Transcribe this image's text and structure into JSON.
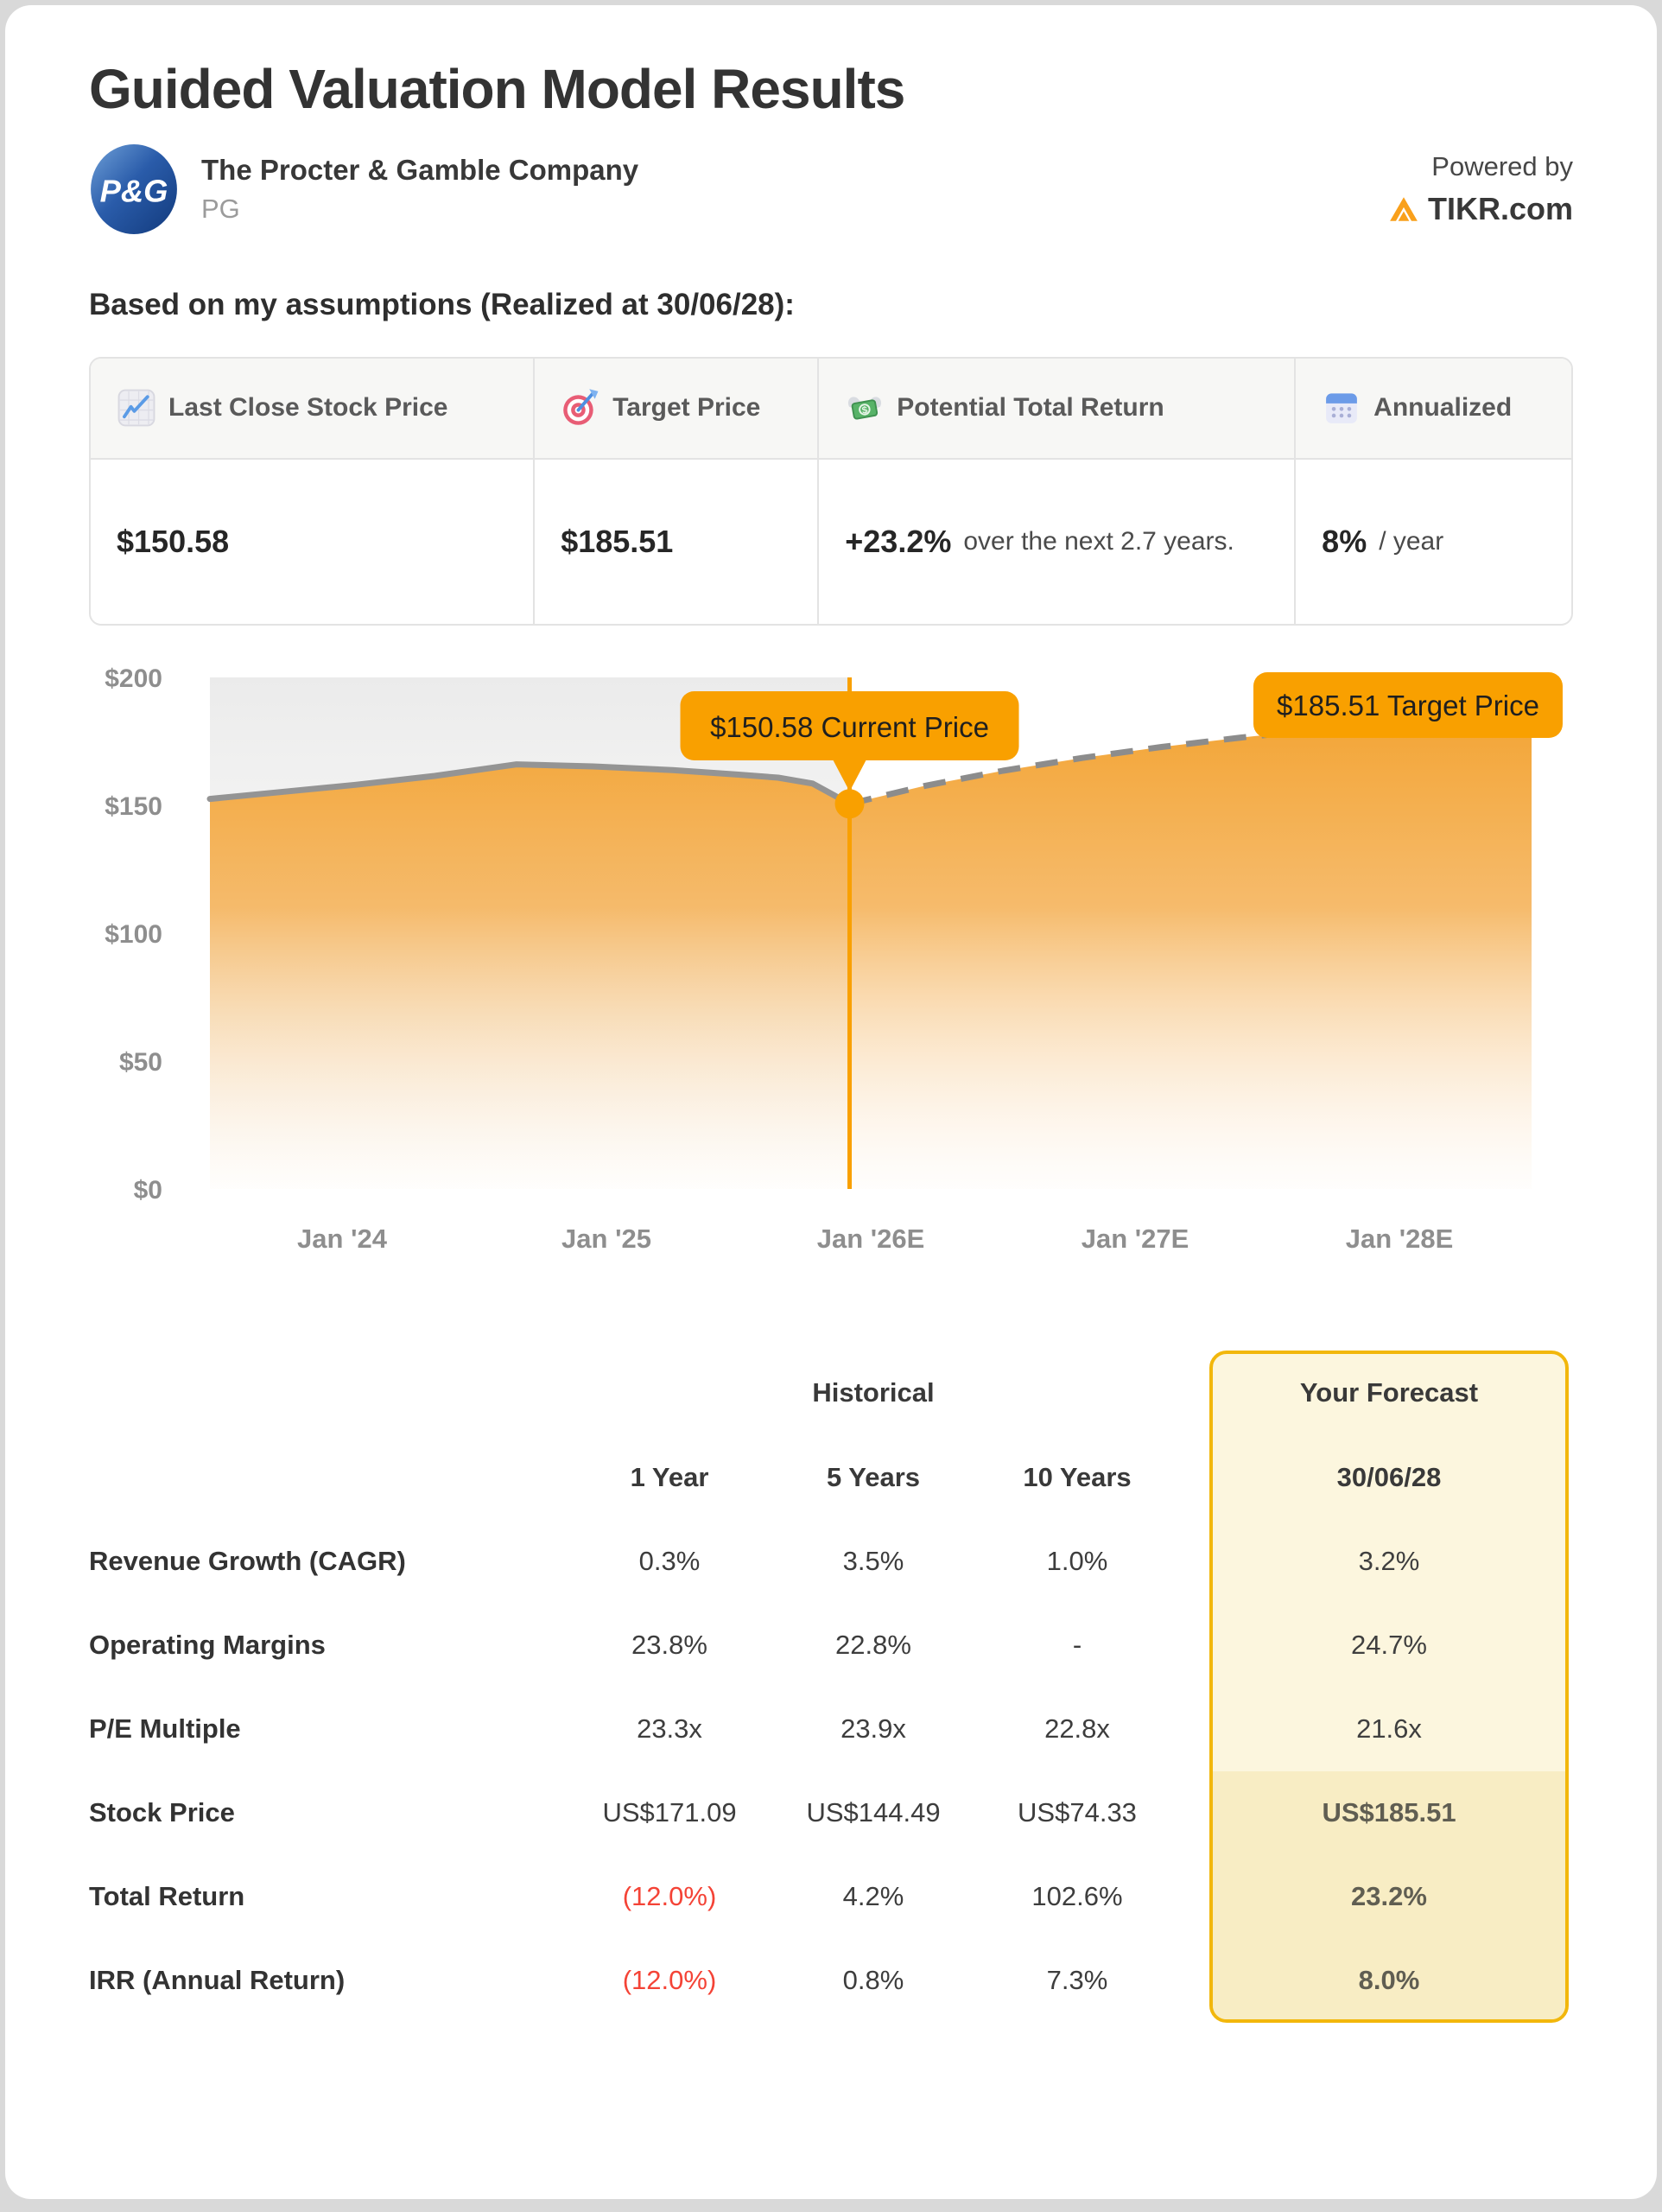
{
  "page_title": "Guided Valuation Model Results",
  "company": {
    "name": "The Procter & Gamble Company",
    "ticker": "PG",
    "logo_text": "P&G"
  },
  "powered_by": {
    "label": "Powered by",
    "brand": "TIKR.com"
  },
  "assumptions_heading": "Based on my assumptions (Realized at 30/06/28):",
  "summary": {
    "columns": [
      {
        "icon": "chart-increasing-icon",
        "label": "Last Close Stock Price",
        "value_bold": "$150.58",
        "value_rest": ""
      },
      {
        "icon": "target-icon",
        "label": "Target Price",
        "value_bold": "$185.51",
        "value_rest": ""
      },
      {
        "icon": "money-with-wings-icon",
        "label": "Potential Total Return",
        "value_bold": "+23.2%",
        "value_rest": "over the next 2.7 years."
      },
      {
        "icon": "calendar-icon",
        "label": "Annualized",
        "value_bold": "8%",
        "value_rest": "/ year"
      }
    ]
  },
  "chart_data": {
    "type": "area",
    "title": "",
    "y_axis": {
      "range": [
        0,
        200
      ],
      "ticks": [
        {
          "label": "$200",
          "value": 200
        },
        {
          "label": "$150",
          "value": 150
        },
        {
          "label": "$100",
          "value": 100
        },
        {
          "label": "$50",
          "value": 50
        },
        {
          "label": "$0",
          "value": 0
        }
      ]
    },
    "x_axis": {
      "range": [
        0,
        5
      ],
      "ticks": [
        {
          "label": "Jan '24",
          "t": 0.5
        },
        {
          "label": "Jan '25",
          "t": 1.5
        },
        {
          "label": "Jan '26E",
          "t": 2.5
        },
        {
          "label": "Jan '27E",
          "t": 3.5
        },
        {
          "label": "Jan '28E",
          "t": 4.5
        }
      ]
    },
    "series": [
      {
        "name": "Historical Price",
        "style": "solid",
        "points": [
          [
            0,
            152.5
          ],
          [
            0.25,
            155
          ],
          [
            0.55,
            158
          ],
          [
            0.85,
            161.5
          ],
          [
            1.16,
            166
          ],
          [
            1.45,
            165.2
          ],
          [
            1.75,
            163.8
          ],
          [
            2.0,
            162
          ],
          [
            2.15,
            160.8
          ],
          [
            2.28,
            158.5
          ],
          [
            2.36,
            154
          ],
          [
            2.42,
            150.58
          ]
        ]
      },
      {
        "name": "Forecast to Target",
        "style": "dashed",
        "points": [
          [
            2.42,
            150.58
          ],
          [
            2.7,
            157.5
          ],
          [
            3.0,
            163.5
          ],
          [
            3.3,
            168.5
          ],
          [
            3.6,
            172.8
          ],
          [
            3.9,
            176.5
          ],
          [
            4.2,
            179.7
          ],
          [
            4.5,
            182.3
          ],
          [
            4.75,
            184
          ],
          [
            5.0,
            185.51
          ]
        ]
      }
    ],
    "annotations": [
      {
        "label": "$150.58 Current Price",
        "t": 2.42,
        "value": 150.58,
        "kind": "current"
      },
      {
        "label": "$185.51 Target Price",
        "t": 5.0,
        "value": 185.51,
        "kind": "target"
      }
    ],
    "current_price": 150.58,
    "target_price": 185.51
  },
  "metrics": {
    "historical_header": "Historical",
    "forecast_header": "Your Forecast",
    "period_headers": [
      "1 Year",
      "5 Years",
      "10 Years"
    ],
    "forecast_period": "30/06/28",
    "rows": [
      {
        "label": "Revenue Growth (CAGR)",
        "values": [
          "0.3%",
          "3.5%",
          "1.0%"
        ],
        "negatives": [
          false,
          false,
          false
        ],
        "forecast": "3.2%",
        "forecast_bold": false
      },
      {
        "label": "Operating Margins",
        "values": [
          "23.8%",
          "22.8%",
          "-"
        ],
        "negatives": [
          false,
          false,
          false
        ],
        "forecast": "24.7%",
        "forecast_bold": false
      },
      {
        "label": "P/E Multiple",
        "values": [
          "23.3x",
          "23.9x",
          "22.8x"
        ],
        "negatives": [
          false,
          false,
          false
        ],
        "forecast": "21.6x",
        "forecast_bold": false
      },
      {
        "label": "Stock Price",
        "values": [
          "US$171.09",
          "US$144.49",
          "US$74.33"
        ],
        "negatives": [
          false,
          false,
          false
        ],
        "forecast": "US$185.51",
        "forecast_bold": true
      },
      {
        "label": "Total Return",
        "values": [
          "(12.0%)",
          "4.2%",
          "102.6%"
        ],
        "negatives": [
          true,
          false,
          false
        ],
        "forecast": "23.2%",
        "forecast_bold": true
      },
      {
        "label": "IRR (Annual Return)",
        "values": [
          "(12.0%)",
          "0.8%",
          "7.3%"
        ],
        "negatives": [
          true,
          false,
          false
        ],
        "forecast": "8.0%",
        "forecast_bold": true
      }
    ]
  },
  "colors": {
    "accent_orange": "#F9A000",
    "tikr_orange": "#F9A01B",
    "gold_border": "#F2B70C",
    "forecast_bg": "#FCF6DE",
    "forecast_bg_highlight": "#F8EDC4",
    "negative_red": "#F44336",
    "axis_text_gray": "#8E8E8E",
    "line_gray": "#949494",
    "pg_blue": "#2A5CAA"
  }
}
